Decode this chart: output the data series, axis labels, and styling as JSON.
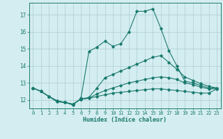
{
  "xlabel": "Humidex (Indice chaleur)",
  "bg_color": "#d4edf0",
  "line_color": "#1a7a6e",
  "grid_color": "#aacdd5",
  "xlim": [
    -0.5,
    23.5
  ],
  "ylim": [
    11.5,
    17.7
  ],
  "yticks": [
    12,
    13,
    14,
    15,
    16,
    17
  ],
  "xticks": [
    0,
    1,
    2,
    3,
    4,
    5,
    6,
    7,
    8,
    9,
    10,
    11,
    12,
    13,
    14,
    15,
    16,
    17,
    18,
    19,
    20,
    21,
    22,
    23
  ],
  "series": [
    {
      "x": [
        0,
        1,
        2,
        3,
        4,
        5,
        6,
        7,
        8,
        9,
        10,
        11,
        12,
        13,
        14,
        15,
        16,
        17,
        18,
        19,
        20,
        21,
        22,
        23
      ],
      "y": [
        12.7,
        12.5,
        12.2,
        11.9,
        11.85,
        11.7,
        12.1,
        14.85,
        15.1,
        15.45,
        15.15,
        15.3,
        16.0,
        17.2,
        17.2,
        17.35,
        16.2,
        14.9,
        14.0,
        13.1,
        13.0,
        12.85,
        12.7,
        12.7
      ]
    },
    {
      "x": [
        0,
        1,
        2,
        3,
        4,
        5,
        6,
        7,
        8,
        9,
        10,
        11,
        12,
        13,
        14,
        15,
        16,
        17,
        18,
        19,
        20,
        21,
        22,
        23
      ],
      "y": [
        12.7,
        12.5,
        12.2,
        11.9,
        11.85,
        11.75,
        12.05,
        12.15,
        12.7,
        13.3,
        13.5,
        13.7,
        13.9,
        14.1,
        14.3,
        14.5,
        14.6,
        14.2,
        13.8,
        13.35,
        13.15,
        12.95,
        12.8,
        12.7
      ]
    },
    {
      "x": [
        0,
        1,
        2,
        3,
        4,
        5,
        6,
        7,
        8,
        9,
        10,
        11,
        12,
        13,
        14,
        15,
        16,
        17,
        18,
        19,
        20,
        21,
        22,
        23
      ],
      "y": [
        12.7,
        12.5,
        12.2,
        11.95,
        11.85,
        11.75,
        12.05,
        12.1,
        12.35,
        12.55,
        12.7,
        12.85,
        13.0,
        13.1,
        13.2,
        13.3,
        13.35,
        13.3,
        13.2,
        13.0,
        12.9,
        12.75,
        12.65,
        12.65
      ]
    },
    {
      "x": [
        0,
        1,
        2,
        3,
        4,
        5,
        6,
        7,
        8,
        9,
        10,
        11,
        12,
        13,
        14,
        15,
        16,
        17,
        18,
        19,
        20,
        21,
        22,
        23
      ],
      "y": [
        12.7,
        12.5,
        12.2,
        11.95,
        11.85,
        11.75,
        12.05,
        12.1,
        12.2,
        12.3,
        12.4,
        12.45,
        12.5,
        12.55,
        12.6,
        12.65,
        12.65,
        12.6,
        12.55,
        12.5,
        12.45,
        12.4,
        12.4,
        12.65
      ]
    }
  ]
}
